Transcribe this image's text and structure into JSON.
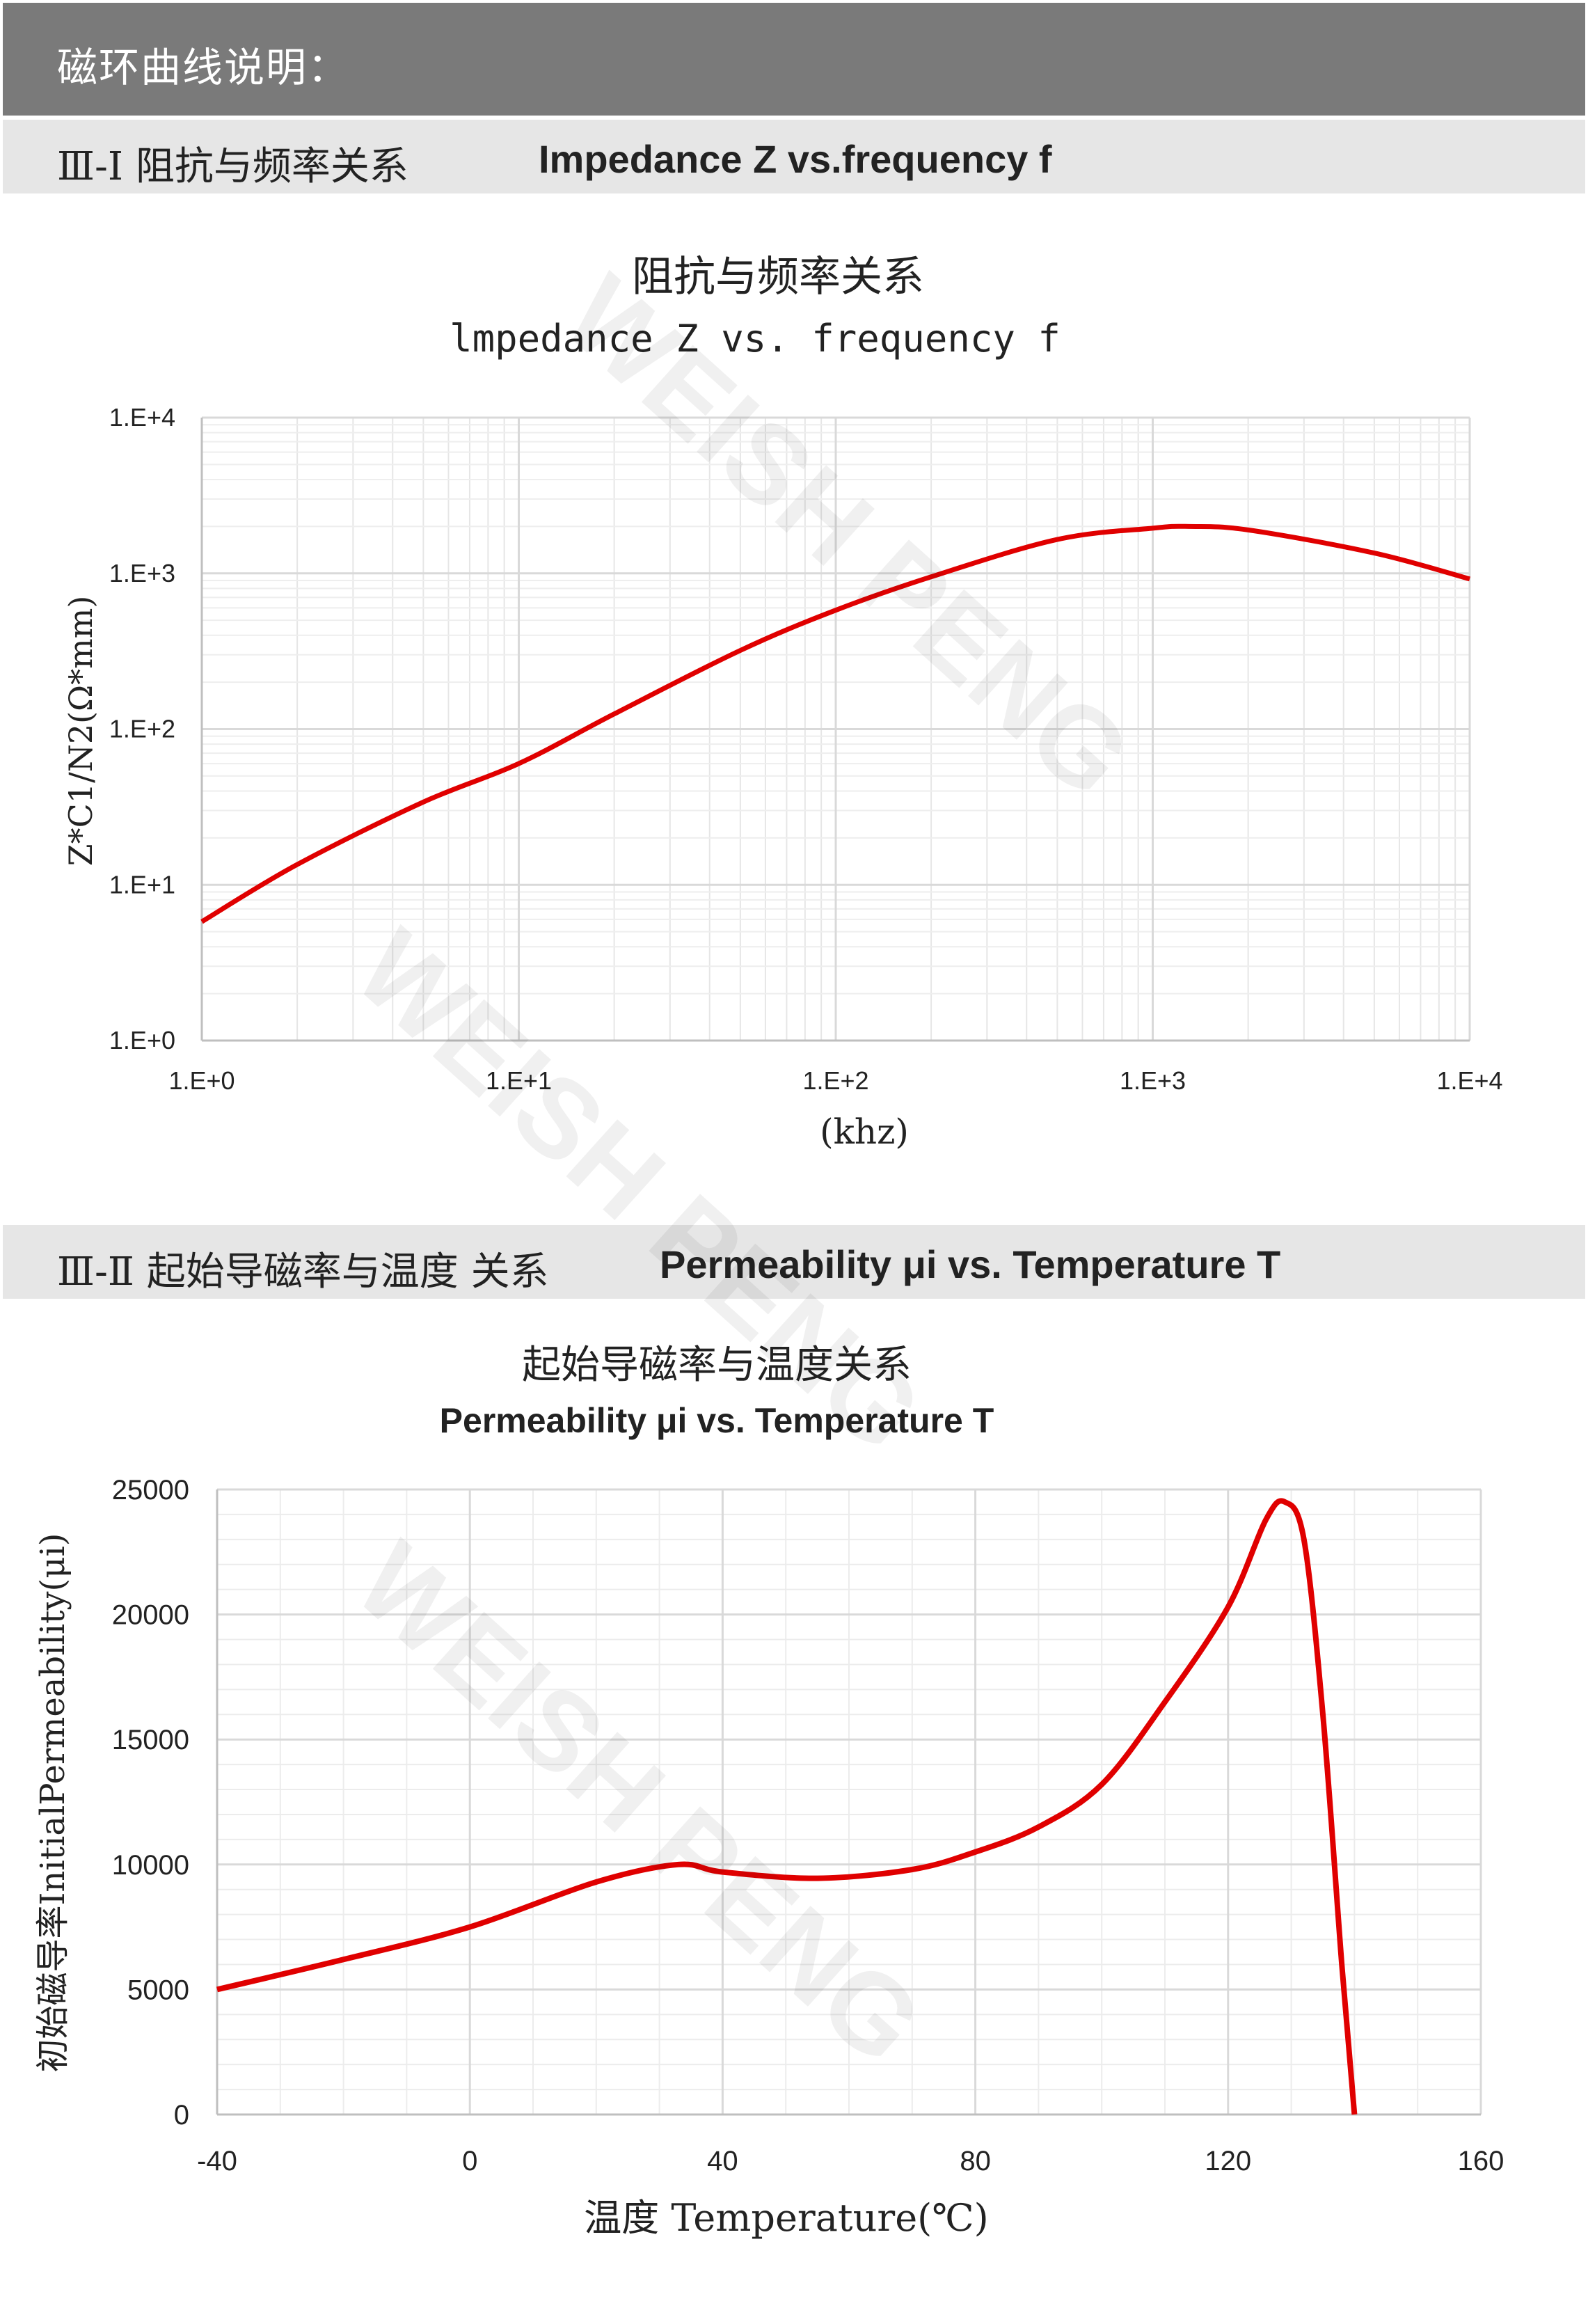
{
  "header": {
    "title": "磁环曲线说明："
  },
  "section1": {
    "zh": "Ⅲ-Ⅰ  阻抗与频率关系",
    "en": "Impedance Z vs.frequency f"
  },
  "section2": {
    "zh": "Ⅲ-Ⅱ  起始导磁率与温度 关系",
    "en": "Permeability μi vs. Temperature T"
  },
  "watermark": "WEISH PENG",
  "colors": {
    "curve": "#e00000",
    "header_dark": "#7a7a7a",
    "header_light": "#e6e6e6",
    "grid": "#d9d9d9"
  },
  "chart_data": [
    {
      "type": "line",
      "title": "阻抗与频率关系",
      "subtitle": "lmpedance Z vs. frequency f",
      "xlabel": "(khz)",
      "ylabel": "Z*C1/N2(Ω*mm)",
      "xscale": "log",
      "yscale": "log",
      "xlim": [
        1,
        10000
      ],
      "ylim": [
        1,
        10000
      ],
      "xticks": [
        "1.E+0",
        "1.E+1",
        "1.E+2",
        "1.E+3",
        "1.E+4"
      ],
      "yticks": [
        "1.E+0",
        "1.E+1",
        "1.E+2",
        "1.E+3",
        "1.E+4"
      ],
      "grid": true,
      "series": [
        {
          "x": [
            1,
            2,
            5,
            10,
            20,
            50,
            100,
            200,
            500,
            1000,
            1300,
            2000,
            5000,
            10000
          ],
          "y": [
            5.8,
            13.5,
            34,
            60,
            125,
            320,
            580,
            950,
            1650,
            1950,
            2000,
            1900,
            1350,
            920
          ]
        }
      ]
    },
    {
      "type": "line",
      "title": "起始导磁率与温度关系",
      "subtitle": "Permeability μi vs. Temperature T",
      "xlabel": "温度 Temperature(℃)",
      "ylabel": "初始磁导率InitialPermeability(μi)",
      "xlim": [
        -40,
        160
      ],
      "ylim": [
        0,
        25000
      ],
      "xticks": [
        "-40",
        "0",
        "40",
        "80",
        "120",
        "160"
      ],
      "yticks": [
        "0",
        "5000",
        "10000",
        "15000",
        "20000",
        "25000"
      ],
      "grid": true,
      "series": [
        {
          "x": [
            -40,
            -20,
            0,
            20,
            33,
            40,
            55,
            70,
            80,
            90,
            100,
            110,
            120,
            126,
            129,
            132,
            135,
            138,
            140
          ],
          "y": [
            5000,
            6200,
            7500,
            9300,
            10000,
            9700,
            9450,
            9800,
            10500,
            11500,
            13200,
            16500,
            20300,
            23800,
            24500,
            23000,
            16000,
            6000,
            0
          ]
        }
      ]
    }
  ]
}
